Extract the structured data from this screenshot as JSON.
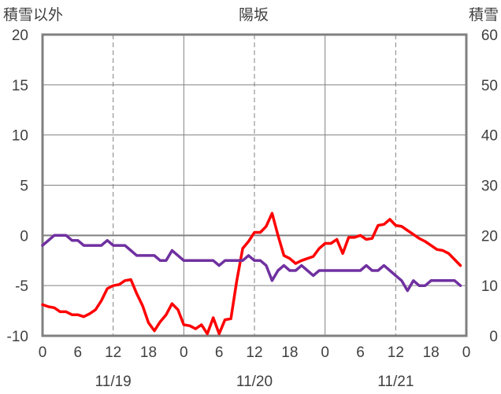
{
  "chart_data": {
    "type": "line",
    "title": "陽坂",
    "left_axis_label": "積雪以外",
    "right_axis_label": "積雪",
    "left_ylim": [
      -10,
      20
    ],
    "left_yticks": [
      "20",
      "15",
      "10",
      "5",
      "0",
      "-5",
      "-10"
    ],
    "right_ylim": [
      0,
      60
    ],
    "right_yticks": [
      "60",
      "50",
      "40",
      "30",
      "20",
      "10",
      "0"
    ],
    "x_range_hours": [
      0,
      72
    ],
    "x_tick_labels": [
      "0",
      "6",
      "12",
      "18",
      "0",
      "6",
      "12",
      "18",
      "0",
      "6",
      "12",
      "18",
      "0"
    ],
    "date_labels": [
      "11/19",
      "11/20",
      "11/21"
    ],
    "grid": true,
    "colors": {
      "temperature": "#ff0000",
      "snow": "#7030a0",
      "axes": "#808080"
    },
    "series": [
      {
        "key": "temperature",
        "axis": "left",
        "x": [
          0,
          1,
          2,
          3,
          4,
          5,
          6,
          7,
          8,
          9,
          10,
          11,
          12,
          13,
          14,
          15,
          16,
          17,
          18,
          19,
          20,
          21,
          22,
          23,
          24,
          25,
          26,
          27,
          28,
          29,
          30,
          31,
          32,
          33,
          34,
          35,
          36,
          37,
          38,
          39,
          40,
          41,
          42,
          43,
          44,
          45,
          46,
          47,
          48,
          49,
          50,
          51,
          52,
          53,
          54,
          55,
          56,
          57,
          58,
          59,
          60,
          61,
          62,
          63,
          64,
          65,
          66,
          67,
          68,
          69,
          70,
          71
        ],
        "values": [
          -6.9,
          -7.1,
          -7.2,
          -7.6,
          -7.6,
          -7.9,
          -7.9,
          -8.1,
          -7.8,
          -7.4,
          -6.5,
          -5.3,
          -5.0,
          -4.9,
          -4.5,
          -4.4,
          -5.8,
          -7.0,
          -8.7,
          -9.5,
          -8.6,
          -7.9,
          -6.8,
          -7.4,
          -8.9,
          -9.0,
          -9.3,
          -8.9,
          -9.8,
          -8.2,
          -9.8,
          -8.4,
          -8.3,
          -4.5,
          -1.3,
          -0.6,
          0.3,
          0.3,
          0.9,
          2.2,
          0.0,
          -2.0,
          -2.3,
          -2.8,
          -2.5,
          -2.3,
          -2.1,
          -1.3,
          -0.8,
          -0.8,
          -0.4,
          -1.8,
          -0.2,
          -0.2,
          0.0,
          -0.4,
          -0.3,
          1.0,
          1.1,
          1.6,
          1.0,
          0.9,
          0.5,
          0.1,
          -0.3,
          -0.6,
          -1.0,
          -1.4,
          -1.5,
          -1.8,
          -2.4,
          -3.0
        ]
      },
      {
        "key": "snow",
        "axis": "right",
        "x": [
          0,
          1,
          2,
          3,
          4,
          5,
          6,
          7,
          8,
          9,
          10,
          11,
          12,
          13,
          14,
          15,
          16,
          17,
          18,
          19,
          20,
          21,
          22,
          23,
          24,
          25,
          26,
          27,
          28,
          29,
          30,
          31,
          32,
          33,
          34,
          35,
          36,
          37,
          38,
          39,
          40,
          41,
          42,
          43,
          44,
          45,
          46,
          47,
          48,
          49,
          50,
          51,
          52,
          53,
          54,
          55,
          56,
          57,
          58,
          59,
          60,
          61,
          62,
          63,
          64,
          65,
          66,
          67,
          68,
          69,
          70,
          71
        ],
        "values": [
          18,
          19,
          20,
          20,
          20,
          19,
          19,
          18,
          18,
          18,
          18,
          19,
          18,
          18,
          18,
          17,
          16,
          16,
          16,
          16,
          15,
          15,
          17,
          16,
          15,
          15,
          15,
          15,
          15,
          15,
          14,
          15,
          15,
          15,
          15,
          16,
          15,
          15,
          14,
          11,
          13,
          14,
          13,
          13,
          14,
          13,
          12,
          13,
          13,
          13,
          13,
          13,
          13,
          13,
          13,
          14,
          13,
          13,
          14,
          13,
          12,
          11,
          9,
          11,
          10,
          10,
          11,
          11,
          11,
          11,
          11,
          10
        ]
      }
    ]
  }
}
